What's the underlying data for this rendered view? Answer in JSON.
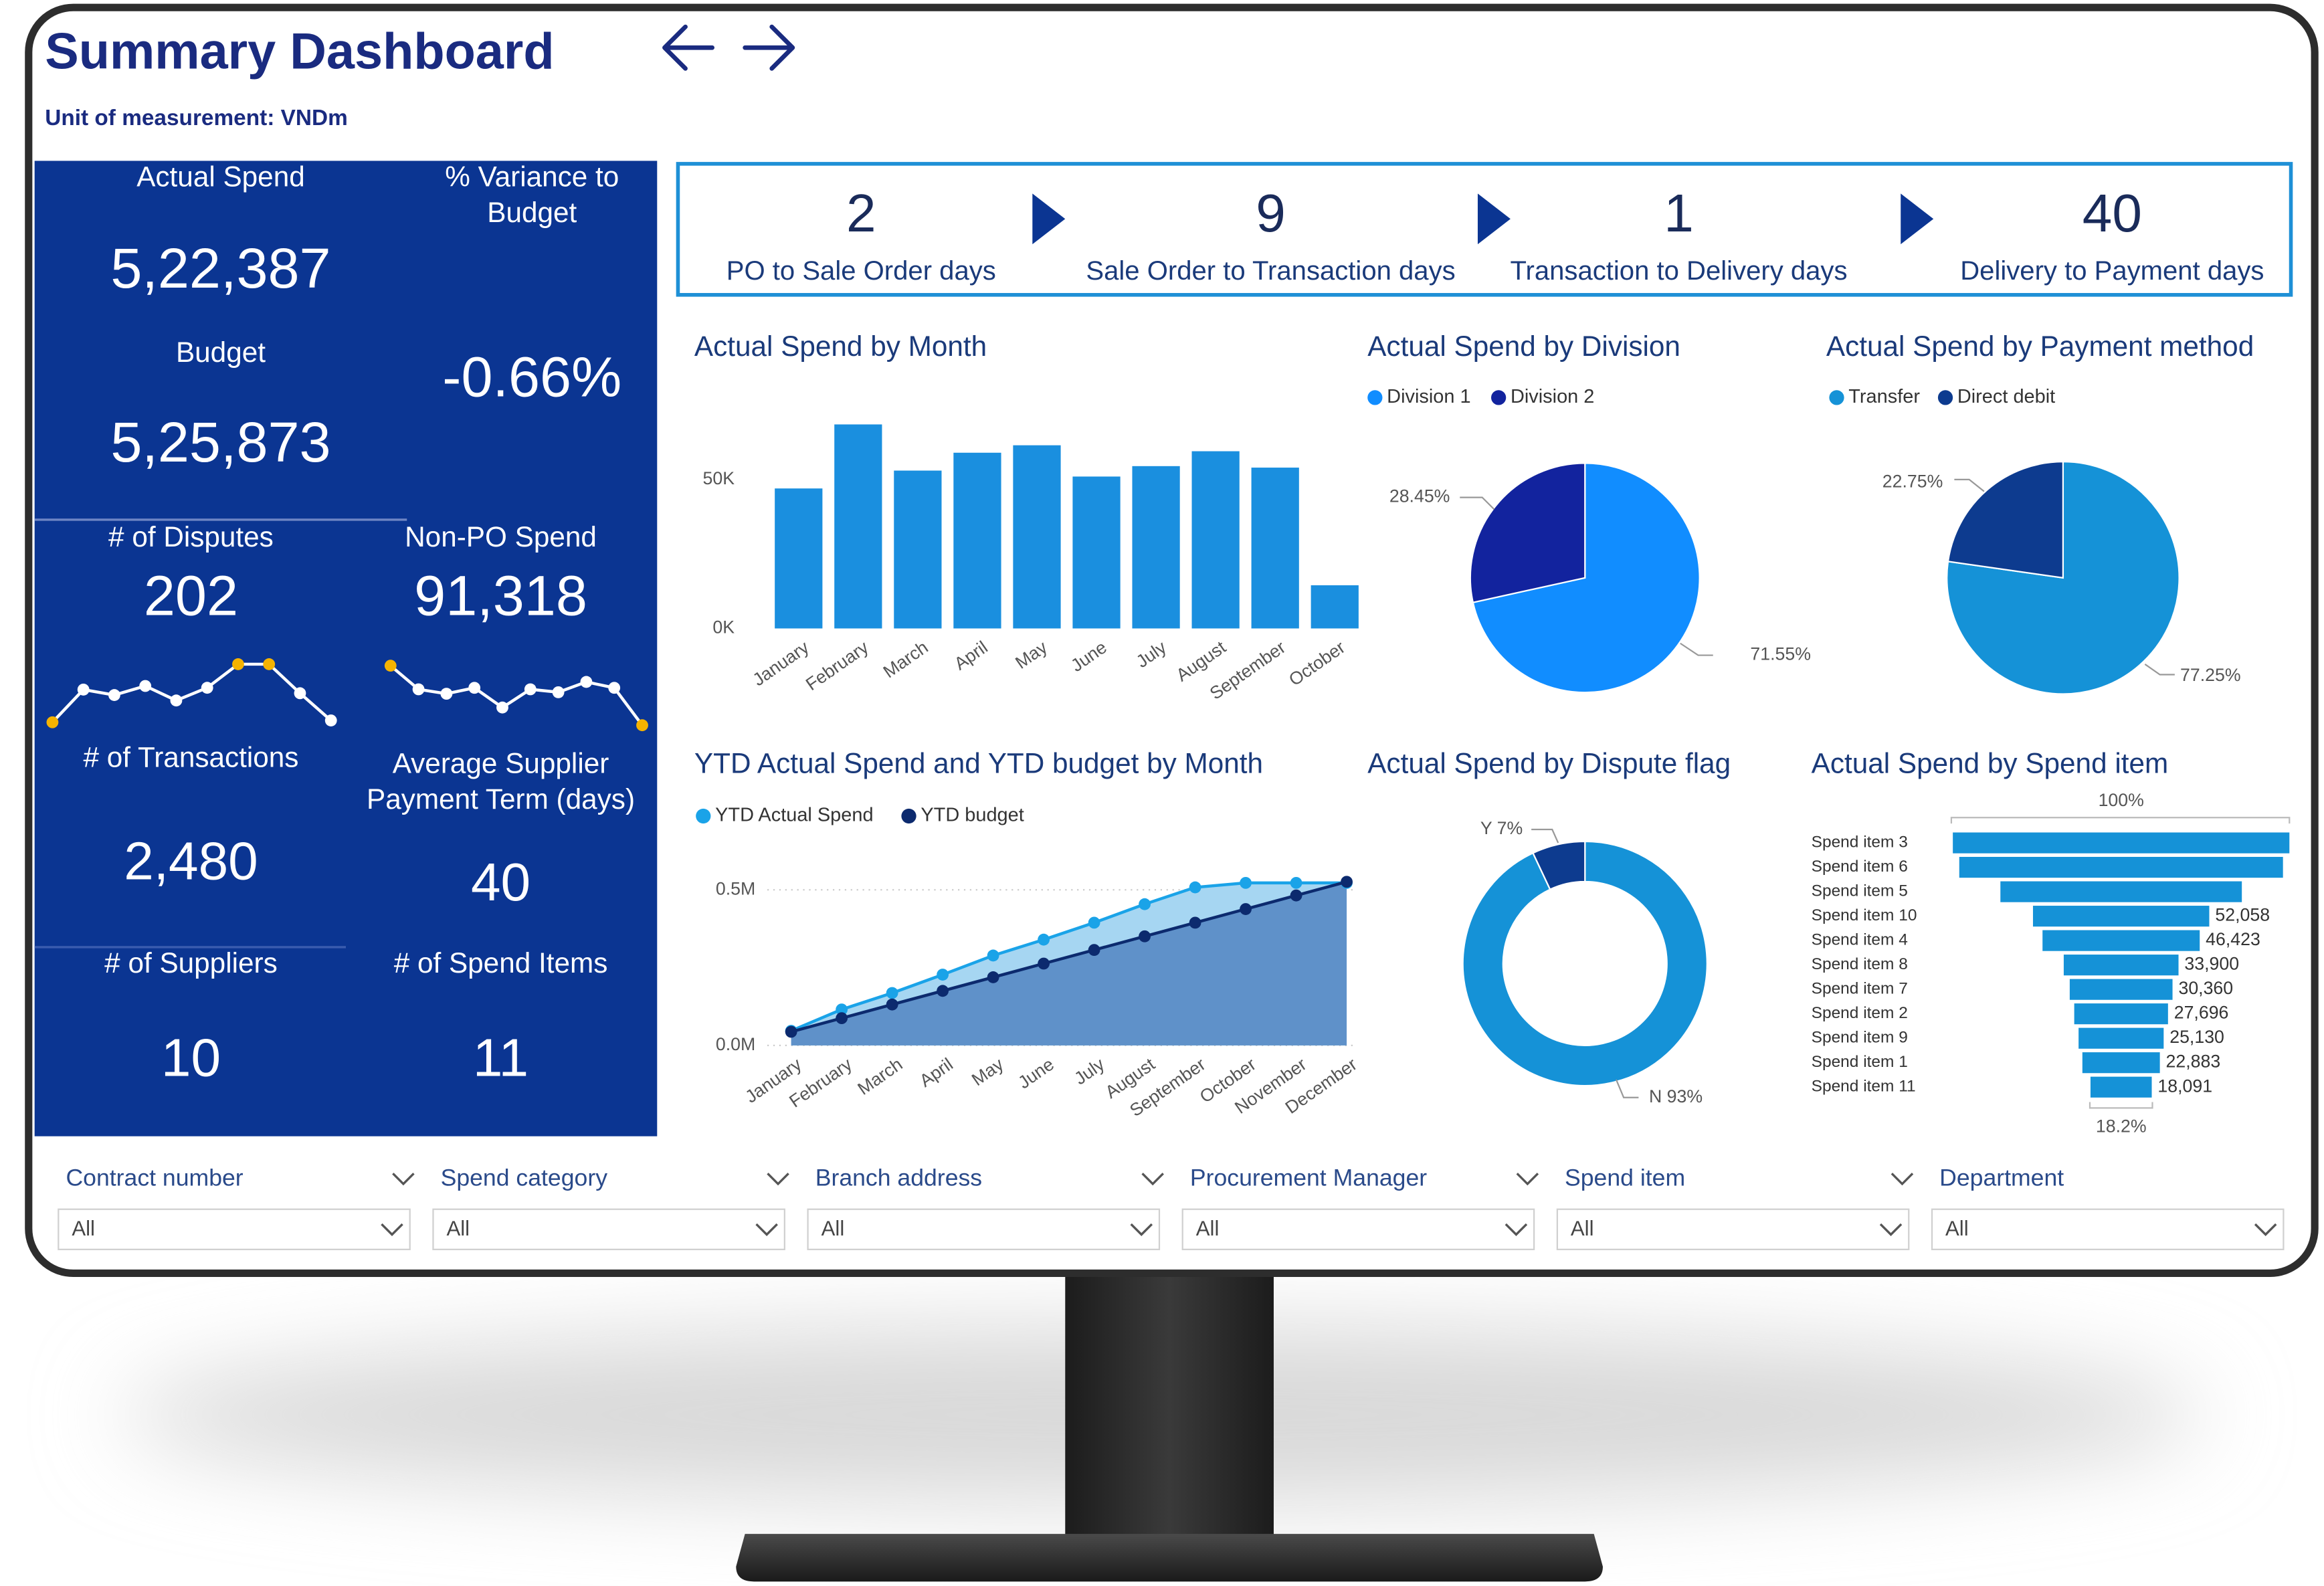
{
  "header": {
    "title": "Summary Dashboard",
    "subtitle": "Unit of measurement: VNDm"
  },
  "kpis": [
    {
      "label": [
        "Actual Spend"
      ],
      "value": "5,22,387"
    },
    {
      "label": [
        "% Variance to",
        "Budget"
      ],
      "value": "-0.66%"
    },
    {
      "label": [
        "Budget"
      ],
      "value": "5,25,873"
    },
    {
      "label": [
        "# of Disputes"
      ],
      "value": "202"
    },
    {
      "label": [
        "Non-PO Spend"
      ],
      "value": "91,318"
    },
    {
      "label": [
        "# of Transactions"
      ],
      "value": "2,480"
    },
    {
      "label": [
        "Average Supplier",
        "Payment Term (days)"
      ],
      "value": "40"
    },
    {
      "label": [
        "# of Suppliers"
      ],
      "value": "10"
    },
    {
      "label": [
        "# of Spend Items"
      ],
      "value": "11"
    }
  ],
  "process": [
    {
      "value": 2,
      "label": "PO to Sale Order days"
    },
    {
      "value": 9,
      "label": "Sale Order to Transaction days"
    },
    {
      "value": 1,
      "label": "Transaction to Delivery days"
    },
    {
      "value": 40,
      "label": "Delivery to Payment days"
    }
  ],
  "chart_data": [
    {
      "type": "bar",
      "title": "Actual Spend by Month",
      "categories": [
        "January",
        "February",
        "March",
        "April",
        "May",
        "June",
        "July",
        "August",
        "September",
        "October"
      ],
      "values": [
        47000,
        68500,
        53000,
        59000,
        61500,
        51000,
        54500,
        59500,
        54000,
        14500
      ],
      "color": "#1a8fdf",
      "ylim": [
        0,
        71000
      ],
      "yticks": [
        {
          "value": 0,
          "label": "0K"
        },
        {
          "value": 50000,
          "label": "50K"
        }
      ]
    },
    {
      "type": "pie",
      "title": "Actual Spend by Division",
      "categories": [
        "Division 1",
        "Division 2"
      ],
      "values": [
        71.55,
        28.45
      ],
      "value_labels": [
        "71.55%",
        "28.45%"
      ],
      "colors": [
        "#118dff",
        "#12239e"
      ]
    },
    {
      "type": "pie",
      "title": "Actual Spend by Payment method",
      "categories": [
        "Transfer",
        "Direct debit"
      ],
      "values": [
        77.25,
        22.75
      ],
      "value_labels": [
        "77.25%",
        "22.75%"
      ],
      "colors": [
        "#1592d7",
        "#0d3b8f"
      ]
    },
    {
      "type": "area",
      "title": "YTD Actual Spend and YTD budget by Month",
      "categories": [
        "January",
        "February",
        "March",
        "April",
        "May",
        "June",
        "July",
        "August",
        "September",
        "October",
        "November",
        "December"
      ],
      "series": [
        {
          "name": "YTD Actual Spend",
          "color": "#1aa3e8",
          "fill": "#a6d6f2",
          "values": [
            47000,
            115500,
            168500,
            227500,
            289000,
            340000,
            394500,
            454000,
            508000,
            522400,
            522400,
            522400
          ]
        },
        {
          "name": "YTD budget",
          "color": "#0c2a6e",
          "fill": "#5f91c9",
          "values": [
            43800,
            87600,
            131500,
            175300,
            219100,
            263000,
            306800,
            350600,
            394400,
            438200,
            482000,
            525900
          ]
        }
      ],
      "ylim": [
        0,
        560000
      ],
      "yticks": [
        {
          "value": 0,
          "label": "0.0M"
        },
        {
          "value": 500000,
          "label": "0.5M"
        }
      ],
      "grid": true
    },
    {
      "type": "donut",
      "title": "Actual Spend by Dispute flag",
      "categories": [
        "N",
        "Y"
      ],
      "values": [
        93,
        7
      ],
      "value_labels": [
        "N 93%",
        "Y 7%"
      ],
      "colors": [
        "#1592d7",
        "#0d3b8f"
      ]
    },
    {
      "type": "funnel",
      "title": "Actual Spend by Spend item",
      "categories": [
        "Spend item 3",
        "Spend item 6",
        "Spend item 5",
        "Spend item 10",
        "Spend item 4",
        "Spend item 8",
        "Spend item 7",
        "Spend item 2",
        "Spend item 9",
        "Spend item 1",
        "Spend item 11"
      ],
      "values": [
        99400,
        95600,
        71300,
        52058,
        46423,
        33900,
        30360,
        27696,
        25130,
        22883,
        18091
      ],
      "value_labels": [
        null,
        null,
        null,
        "52,058",
        "46,423",
        "33,900",
        "30,360",
        "27,696",
        "25,130",
        "22,883",
        "18,091"
      ],
      "top_label": "100%",
      "bottom_label": "18.2%",
      "color": "#1592d7"
    },
    {
      "type": "sparkline",
      "values": [
        4,
        22,
        19,
        24,
        16,
        23,
        36,
        36,
        20,
        5
      ],
      "color": "#ffffff",
      "highlight_color": "#f5b300"
    },
    {
      "type": "sparkline",
      "values": [
        14500,
        9700,
        8800,
        10000,
        6000,
        9700,
        9100,
        11200,
        10000,
        2400
      ],
      "color": "#ffffff",
      "highlight_color": "#f5b300"
    }
  ],
  "filters": [
    {
      "label": "Contract number",
      "value": "All"
    },
    {
      "label": "Spend category",
      "value": "All"
    },
    {
      "label": "Branch address",
      "value": "All"
    },
    {
      "label": "Procurement Manager",
      "value": "All"
    },
    {
      "label": "Spend item",
      "value": "All"
    },
    {
      "label": "Department",
      "value": "All"
    }
  ]
}
